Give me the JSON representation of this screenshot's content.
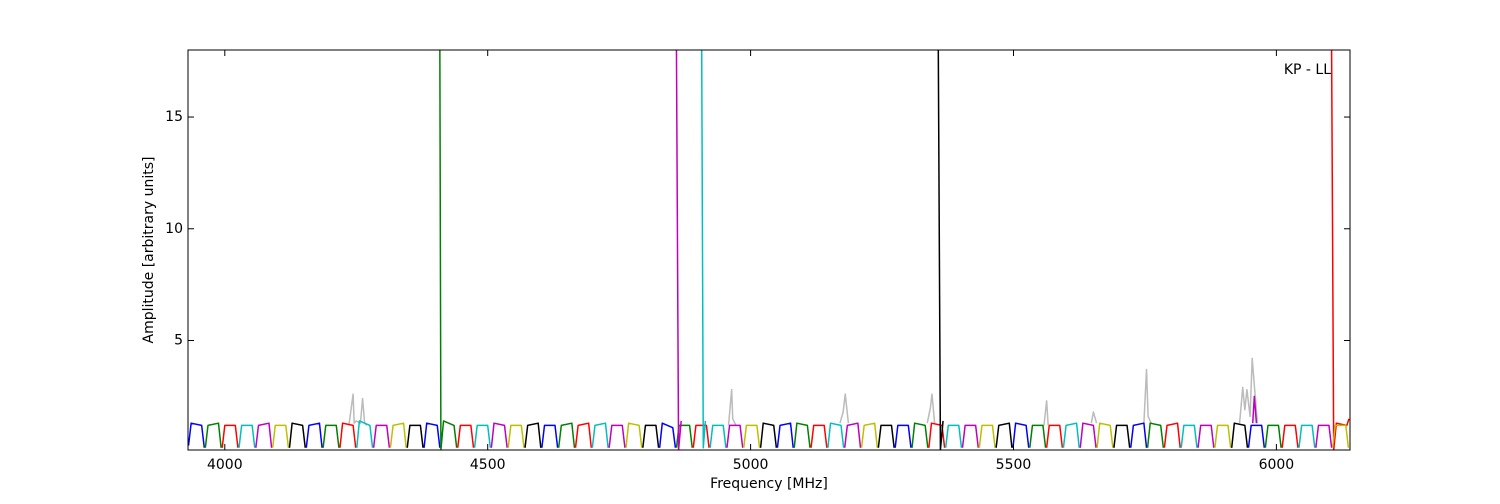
{
  "chart_data": {
    "type": "line",
    "annotation": "KP - LL",
    "x_label": "Frequency [MHz]",
    "y_label": "Amplitude [arbitrary units]",
    "xlim": [
      3930,
      6140
    ],
    "ylim": [
      0.1,
      18
    ],
    "xticks": [
      4000,
      4500,
      5000,
      5500,
      6000
    ],
    "yticks": [
      5,
      10,
      15
    ],
    "series": [
      {
        "color": "#bbbbbb",
        "x": [
          4236,
          4244,
          4246,
          4250,
          4258,
          4262,
          4266,
          4270,
          null,
          4958,
          4964,
          4966,
          4972,
          null,
          5170,
          5176,
          5180,
          5186,
          null,
          5336,
          5342,
          5345,
          5350,
          null,
          5558,
          5563,
          5566,
          null,
          5648,
          5652,
          5658,
          null,
          5748,
          5753,
          5756,
          5762,
          null,
          5930,
          5936,
          5940,
          5944,
          5950,
          5954,
          5958,
          5964
        ],
        "values": [
          1.2,
          2.6,
          1.3,
          1.4,
          1.3,
          2.4,
          1.3,
          1.2,
          null,
          1.2,
          2.8,
          1.5,
          1.2,
          null,
          1.3,
          1.8,
          2.6,
          1.3,
          null,
          1.3,
          2.0,
          2.6,
          1.3,
          null,
          1.2,
          2.3,
          1.2,
          null,
          1.3,
          1.8,
          1.3,
          null,
          1.3,
          3.7,
          1.6,
          1.3,
          null,
          1.3,
          2.9,
          1.9,
          2.8,
          1.6,
          4.2,
          3.0,
          1.3
        ]
      },
      {
        "color": "#0000ff",
        "x": [
          3931,
          3936,
          3956,
          3961,
          null,
          4155,
          4160,
          4180,
          4185,
          null,
          4379,
          4384,
          4404,
          4409,
          null,
          4603,
          4608,
          4628,
          4633,
          null,
          4827,
          4832,
          4852,
          4857,
          null,
          5051,
          5056,
          5076,
          5081,
          null,
          5275,
          5280,
          5300,
          5305,
          null,
          5499,
          5504,
          5524,
          5529,
          null,
          5723,
          5728,
          5748,
          5753,
          null,
          5947,
          5952,
          5972,
          5977
        ],
        "values": [
          0.3,
          1.3,
          1.2,
          0.2,
          null,
          0.2,
          1.2,
          1.3,
          0.2,
          null,
          0.2,
          1.3,
          1.2,
          0.2,
          null,
          0.2,
          1.2,
          1.2,
          0.2,
          null,
          0.2,
          1.3,
          1.1,
          0.2,
          null,
          0.2,
          1.2,
          1.3,
          0.2,
          null,
          0.2,
          1.2,
          1.2,
          0.2,
          null,
          0.2,
          1.3,
          1.2,
          0.2,
          null,
          0.2,
          1.2,
          1.3,
          0.2,
          null,
          0.2,
          1.2,
          1.2,
          0.2
        ]
      },
      {
        "color": "#008000",
        "x": [
          3963,
          3968,
          3988,
          3993,
          null,
          4187,
          4192,
          4212,
          4217,
          null,
          4409,
          4411,
          4416,
          4436,
          4441,
          null,
          4635,
          4640,
          4660,
          4665,
          null,
          4859,
          4864,
          4884,
          4889,
          null,
          5083,
          5088,
          5108,
          5113,
          null,
          5307,
          5312,
          5332,
          5337,
          null,
          5531,
          5536,
          5556,
          5561,
          null,
          5755,
          5760,
          5780,
          5785,
          null,
          5979,
          5984,
          6004,
          6009
        ],
        "values": [
          0.2,
          1.2,
          1.3,
          0.2,
          null,
          0.2,
          1.2,
          1.2,
          0.2,
          null,
          18,
          0.1,
          1.4,
          1.2,
          0.2,
          null,
          0.2,
          1.2,
          1.3,
          0.2,
          null,
          0.2,
          1.2,
          1.2,
          0.2,
          null,
          0.2,
          1.3,
          1.2,
          0.2,
          null,
          0.2,
          1.3,
          1.2,
          0.2,
          null,
          0.2,
          1.2,
          1.2,
          0.2,
          null,
          0.2,
          1.3,
          1.2,
          0.2,
          null,
          0.2,
          1.2,
          1.2,
          0.2
        ]
      },
      {
        "color": "#ff0000",
        "x": [
          3995,
          4000,
          4020,
          4025,
          null,
          4219,
          4224,
          4244,
          4249,
          null,
          4443,
          4448,
          4468,
          4473,
          null,
          4667,
          4672,
          4692,
          4697,
          null,
          4891,
          4896,
          4916,
          4921,
          null,
          5115,
          5120,
          5140,
          5145,
          null,
          5339,
          5344,
          5364,
          5369,
          null,
          5563,
          5568,
          5588,
          5593,
          null,
          5787,
          5792,
          5812,
          5817,
          null,
          6011,
          6016,
          6036,
          6041,
          null,
          6105,
          6109,
          6114,
          6134,
          6138
        ],
        "values": [
          0.2,
          1.2,
          1.2,
          0.2,
          null,
          0.2,
          1.3,
          1.2,
          0.2,
          null,
          0.2,
          1.2,
          1.2,
          0.2,
          null,
          0.2,
          1.2,
          1.3,
          0.2,
          null,
          0.2,
          1.2,
          1.2,
          0.2,
          null,
          0.2,
          1.2,
          1.2,
          0.2,
          null,
          0.2,
          1.3,
          1.2,
          0.2,
          null,
          0.2,
          1.2,
          1.2,
          0.2,
          null,
          0.2,
          1.2,
          1.3,
          0.2,
          null,
          0.2,
          1.2,
          1.2,
          0.2,
          null,
          18,
          0.1,
          1.3,
          1.2,
          1.5
        ]
      },
      {
        "color": "#00bfbf",
        "x": [
          4027,
          4032,
          4052,
          4057,
          null,
          4251,
          4256,
          4276,
          4281,
          null,
          4475,
          4480,
          4500,
          4505,
          null,
          4699,
          4704,
          4724,
          4729,
          null,
          4907,
          4910,
          4914,
          null,
          4923,
          4928,
          4948,
          4953,
          null,
          5147,
          5152,
          5172,
          5177,
          null,
          5371,
          5376,
          5396,
          5401,
          null,
          5595,
          5600,
          5620,
          5625,
          null,
          5819,
          5824,
          5844,
          5849,
          null,
          6043,
          6048,
          6068,
          6073
        ],
        "values": [
          0.2,
          1.2,
          1.2,
          0.2,
          null,
          0.2,
          1.4,
          1.2,
          0.2,
          null,
          0.2,
          1.2,
          1.2,
          0.2,
          null,
          0.2,
          1.2,
          1.3,
          0.2,
          null,
          18,
          0.2,
          1.4,
          null,
          0.2,
          1.2,
          1.2,
          0.2,
          null,
          0.2,
          1.3,
          1.2,
          0.2,
          null,
          0.2,
          1.2,
          1.2,
          0.2,
          null,
          0.2,
          1.2,
          1.3,
          0.2,
          null,
          0.2,
          1.2,
          1.2,
          0.2,
          null,
          0.2,
          1.2,
          1.2,
          0.2
        ]
      },
      {
        "color": "#bf00bf",
        "x": [
          4059,
          4064,
          4084,
          4089,
          null,
          4283,
          4288,
          4308,
          4313,
          null,
          4507,
          4512,
          4532,
          4537,
          null,
          4731,
          4736,
          4756,
          4761,
          null,
          4859,
          4863,
          4868,
          null,
          4955,
          4960,
          4980,
          4985,
          null,
          5179,
          5184,
          5204,
          5209,
          null,
          5403,
          5408,
          5428,
          5433,
          null,
          5627,
          5632,
          5652,
          5657,
          null,
          5851,
          5856,
          5876,
          5881,
          null,
          5955,
          5958,
          5962,
          null,
          6075,
          6080,
          6100,
          6105
        ],
        "values": [
          0.2,
          1.2,
          1.3,
          0.2,
          null,
          0.2,
          1.2,
          1.2,
          0.2,
          null,
          0.2,
          1.3,
          1.2,
          0.2,
          null,
          0.2,
          1.2,
          1.2,
          0.2,
          null,
          18,
          0.1,
          1.4,
          null,
          0.2,
          1.2,
          1.2,
          0.2,
          null,
          0.2,
          1.2,
          1.3,
          0.2,
          null,
          0.2,
          1.2,
          1.2,
          0.2,
          null,
          0.2,
          1.3,
          1.2,
          0.2,
          null,
          0.2,
          1.2,
          1.2,
          0.2,
          null,
          1.3,
          2.5,
          1.3,
          null,
          0.2,
          1.2,
          1.2,
          0.2
        ]
      },
      {
        "color": "#bfbf00",
        "x": [
          4091,
          4096,
          4116,
          4121,
          null,
          4315,
          4320,
          4340,
          4345,
          null,
          4539,
          4544,
          4564,
          4569,
          null,
          4763,
          4768,
          4788,
          4793,
          null,
          4987,
          4992,
          5012,
          5017,
          null,
          5211,
          5216,
          5236,
          5241,
          null,
          5435,
          5440,
          5460,
          5465,
          null,
          5659,
          5664,
          5684,
          5689,
          null,
          5883,
          5888,
          5908,
          5913,
          null,
          6107,
          6112,
          6132,
          6137
        ],
        "values": [
          0.2,
          1.2,
          1.2,
          0.2,
          null,
          0.2,
          1.2,
          1.3,
          0.2,
          null,
          0.2,
          1.2,
          1.2,
          0.2,
          null,
          0.2,
          1.3,
          1.2,
          0.2,
          null,
          0.2,
          1.2,
          1.2,
          0.2,
          null,
          0.2,
          1.2,
          1.3,
          0.2,
          null,
          0.2,
          1.2,
          1.2,
          0.2,
          null,
          0.2,
          1.3,
          1.2,
          0.2,
          null,
          0.2,
          1.2,
          1.2,
          0.2,
          null,
          0.2,
          1.2,
          1.2,
          0.2
        ]
      },
      {
        "color": "#000000",
        "x": [
          4123,
          4128,
          4148,
          4153,
          null,
          4347,
          4352,
          4372,
          4377,
          null,
          4571,
          4576,
          4596,
          4601,
          null,
          4795,
          4800,
          4820,
          4825,
          null,
          5019,
          5024,
          5044,
          5049,
          null,
          5243,
          5248,
          5268,
          5273,
          null,
          5357,
          5361,
          5366,
          null,
          5467,
          5472,
          5492,
          5497,
          null,
          5691,
          5696,
          5716,
          5721,
          null,
          5915,
          5920,
          5940,
          5945
        ],
        "values": [
          0.2,
          1.3,
          1.2,
          0.2,
          null,
          0.2,
          1.2,
          1.2,
          0.2,
          null,
          0.2,
          1.2,
          1.3,
          0.2,
          null,
          0.2,
          1.2,
          1.2,
          0.2,
          null,
          0.2,
          1.3,
          1.2,
          0.2,
          null,
          0.2,
          1.2,
          1.2,
          0.2,
          null,
          18,
          0.1,
          1.4,
          null,
          0.2,
          1.2,
          1.3,
          0.2,
          null,
          0.2,
          1.2,
          1.2,
          0.2,
          null,
          0.2,
          1.3,
          1.2,
          0.2
        ]
      }
    ]
  }
}
